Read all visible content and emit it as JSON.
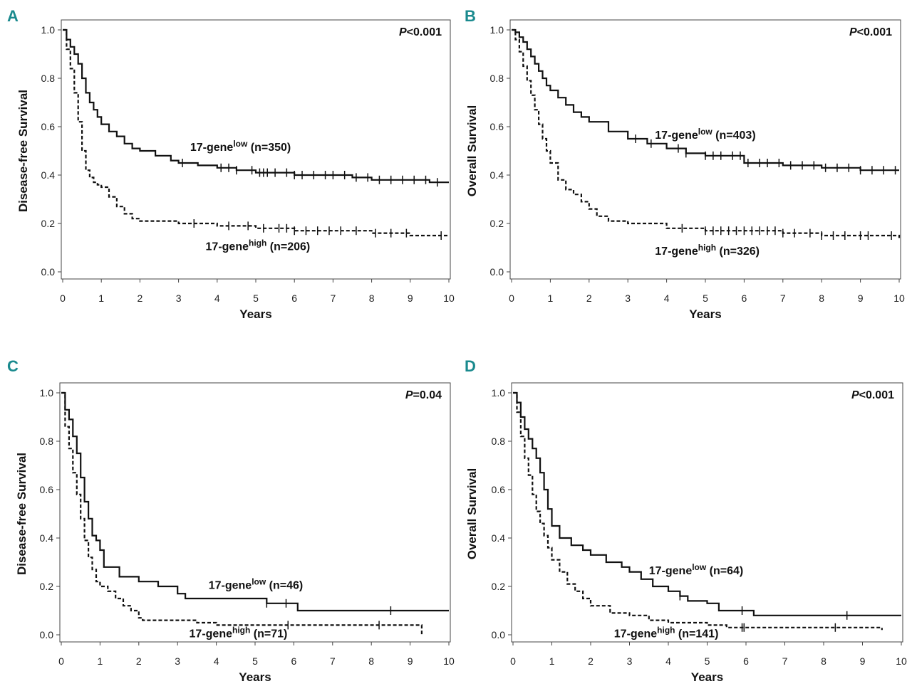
{
  "chart_data": [
    {
      "type": "line",
      "panel": "A",
      "xlabel": "Years",
      "ylabel": "Disease-free Survival",
      "xlim": [
        0,
        10
      ],
      "ylim": [
        0,
        1
      ],
      "xticks": [
        "0",
        "1",
        "2",
        "3",
        "4",
        "5",
        "6",
        "7",
        "8",
        "9",
        "10"
      ],
      "yticks": [
        "0.0",
        "0.2",
        "0.4",
        "0.6",
        "0.8",
        "1.0"
      ],
      "pvalue": {
        "label": "P",
        "rest": "<0.001"
      },
      "series": [
        {
          "name": "17-gene low",
          "base": "17-gene",
          "sup": "low",
          "n": "(n=350)",
          "style": "solid",
          "x": [
            0,
            0.1,
            0.2,
            0.3,
            0.4,
            0.5,
            0.6,
            0.7,
            0.8,
            0.9,
            1.0,
            1.2,
            1.4,
            1.6,
            1.8,
            2.0,
            2.4,
            2.8,
            3.0,
            3.5,
            4.0,
            4.5,
            5.0,
            6.0,
            7.0,
            7.5,
            8.0,
            9.0,
            9.5,
            10.0
          ],
          "y": [
            1.0,
            0.96,
            0.93,
            0.9,
            0.86,
            0.8,
            0.74,
            0.7,
            0.67,
            0.64,
            0.61,
            0.58,
            0.56,
            0.53,
            0.51,
            0.5,
            0.48,
            0.46,
            0.45,
            0.44,
            0.43,
            0.42,
            0.41,
            0.4,
            0.4,
            0.39,
            0.38,
            0.38,
            0.37,
            0.37
          ],
          "censor": [
            3.1,
            4.1,
            4.3,
            4.5,
            4.9,
            5.1,
            5.2,
            5.3,
            5.5,
            5.8,
            6.0,
            6.2,
            6.5,
            6.8,
            7.0,
            7.3,
            7.6,
            7.9,
            8.2,
            8.5,
            8.8,
            9.1,
            9.4,
            9.7
          ]
        },
        {
          "name": "17-gene high",
          "base": "17-gene",
          "sup": "high",
          "n": "(n=206)",
          "style": "dashed",
          "x": [
            0,
            0.1,
            0.2,
            0.3,
            0.4,
            0.5,
            0.6,
            0.7,
            0.8,
            0.9,
            1.0,
            1.2,
            1.4,
            1.6,
            1.8,
            2.0,
            2.5,
            3.0,
            4.0,
            5.0,
            6.0,
            7.0,
            8.0,
            9.0,
            10.0
          ],
          "y": [
            1.0,
            0.92,
            0.84,
            0.74,
            0.62,
            0.5,
            0.42,
            0.39,
            0.37,
            0.36,
            0.35,
            0.31,
            0.27,
            0.24,
            0.22,
            0.21,
            0.21,
            0.2,
            0.19,
            0.18,
            0.17,
            0.17,
            0.16,
            0.15,
            0.15
          ],
          "censor": [
            3.4,
            4.3,
            4.8,
            5.2,
            5.6,
            5.8,
            6.0,
            6.3,
            6.6,
            6.9,
            7.2,
            7.6,
            8.1,
            8.5,
            8.9,
            9.8
          ]
        }
      ],
      "labels": [
        {
          "series": 0,
          "x": 3.3,
          "y": 0.5
        },
        {
          "series": 1,
          "x": 3.7,
          "y": 0.09
        }
      ]
    },
    {
      "type": "line",
      "panel": "B",
      "xlabel": "Years",
      "ylabel": "Overall Survival",
      "xlim": [
        0,
        10
      ],
      "ylim": [
        0,
        1
      ],
      "xticks": [
        "0",
        "1",
        "2",
        "3",
        "4",
        "5",
        "6",
        "7",
        "8",
        "9",
        "10"
      ],
      "yticks": [
        "0.0",
        "0.2",
        "0.4",
        "0.6",
        "0.8",
        "1.0"
      ],
      "pvalue": {
        "label": "P",
        "rest": "<0.001"
      },
      "series": [
        {
          "name": "17-gene low",
          "base": "17-gene",
          "sup": "low",
          "n": "(n=403)",
          "style": "solid",
          "x": [
            0,
            0.1,
            0.2,
            0.3,
            0.4,
            0.5,
            0.6,
            0.7,
            0.8,
            0.9,
            1.0,
            1.2,
            1.4,
            1.6,
            1.8,
            2.0,
            2.5,
            3.0,
            3.5,
            4.0,
            4.5,
            5.0,
            6.0,
            7.0,
            8.0,
            9.0,
            10.0
          ],
          "y": [
            1.0,
            0.99,
            0.97,
            0.95,
            0.92,
            0.89,
            0.86,
            0.83,
            0.8,
            0.77,
            0.75,
            0.72,
            0.69,
            0.66,
            0.64,
            0.62,
            0.58,
            0.55,
            0.53,
            0.51,
            0.49,
            0.48,
            0.45,
            0.44,
            0.43,
            0.42,
            0.42
          ],
          "censor": [
            3.2,
            3.6,
            4.3,
            4.5,
            5.0,
            5.2,
            5.4,
            5.7,
            5.9,
            6.1,
            6.4,
            6.6,
            6.9,
            7.2,
            7.5,
            7.8,
            8.1,
            8.4,
            8.7,
            9.0,
            9.3,
            9.6,
            9.9
          ]
        },
        {
          "name": "17-gene high",
          "base": "17-gene",
          "sup": "high",
          "n": "(n=326)",
          "style": "dashed",
          "x": [
            0,
            0.1,
            0.2,
            0.3,
            0.4,
            0.5,
            0.6,
            0.7,
            0.8,
            0.9,
            1.0,
            1.2,
            1.4,
            1.6,
            1.8,
            2.0,
            2.2,
            2.5,
            3.0,
            4.0,
            5.0,
            6.0,
            7.0,
            8.0,
            9.0,
            10.0
          ],
          "y": [
            1.0,
            0.96,
            0.91,
            0.85,
            0.79,
            0.73,
            0.67,
            0.61,
            0.55,
            0.5,
            0.45,
            0.38,
            0.34,
            0.32,
            0.29,
            0.26,
            0.23,
            0.21,
            0.2,
            0.18,
            0.17,
            0.17,
            0.16,
            0.15,
            0.15,
            0.14
          ],
          "censor": [
            4.4,
            5.0,
            5.2,
            5.4,
            5.6,
            5.8,
            6.0,
            6.2,
            6.4,
            6.6,
            6.8,
            7.0,
            7.3,
            7.7,
            8.0,
            8.3,
            8.6,
            9.0,
            9.2,
            9.8
          ]
        }
      ],
      "labels": [
        {
          "series": 0,
          "x": 3.7,
          "y": 0.55
        },
        {
          "series": 1,
          "x": 3.7,
          "y": 0.07
        }
      ]
    },
    {
      "type": "line",
      "panel": "C",
      "xlabel": "Years",
      "ylabel": "Disease-free Survival",
      "xlim": [
        0,
        10
      ],
      "ylim": [
        0,
        1
      ],
      "xticks": [
        "0",
        "1",
        "2",
        "3",
        "4",
        "5",
        "6",
        "7",
        "8",
        "9",
        "10"
      ],
      "yticks": [
        "0.0",
        "0.2",
        "0.4",
        "0.6",
        "0.8",
        "1.0"
      ],
      "pvalue": {
        "label": "P",
        "rest": "=0.04"
      },
      "series": [
        {
          "name": "17-gene low",
          "base": "17-gene",
          "sup": "low",
          "n": "(n=46)",
          "style": "solid",
          "x": [
            0,
            0.1,
            0.2,
            0.3,
            0.4,
            0.5,
            0.6,
            0.7,
            0.8,
            0.9,
            1.0,
            1.1,
            1.5,
            2.0,
            2.5,
            3.0,
            3.2,
            5.0,
            5.3,
            6.0,
            6.1,
            9.0,
            10.0
          ],
          "y": [
            1.0,
            0.93,
            0.89,
            0.82,
            0.75,
            0.65,
            0.55,
            0.48,
            0.41,
            0.39,
            0.35,
            0.28,
            0.24,
            0.22,
            0.2,
            0.17,
            0.15,
            0.15,
            0.13,
            0.13,
            0.1,
            0.1,
            0.1
          ],
          "censor": [
            5.3,
            5.8,
            8.5
          ]
        },
        {
          "name": "17-gene high",
          "base": "17-gene",
          "sup": "high",
          "n": "(n=71)",
          "style": "dashed",
          "x": [
            0,
            0.1,
            0.2,
            0.3,
            0.4,
            0.5,
            0.6,
            0.7,
            0.8,
            0.9,
            1.0,
            1.2,
            1.4,
            1.6,
            1.8,
            2.0,
            2.1,
            3.5,
            4.0,
            5.0,
            6.0,
            7.0,
            8.0,
            9.0,
            9.3
          ],
          "y": [
            1.0,
            0.86,
            0.77,
            0.67,
            0.58,
            0.48,
            0.39,
            0.32,
            0.27,
            0.22,
            0.2,
            0.18,
            0.15,
            0.12,
            0.1,
            0.07,
            0.06,
            0.05,
            0.04,
            0.04,
            0.04,
            0.04,
            0.04,
            0.04,
            0.0
          ],
          "censor": [
            5.85,
            8.2
          ]
        }
      ],
      "labels": [
        {
          "series": 0,
          "x": 3.8,
          "y": 0.19
        },
        {
          "series": 1,
          "x": 3.3,
          "y": -0.01
        }
      ]
    },
    {
      "type": "line",
      "panel": "D",
      "xlabel": "Years",
      "ylabel": "Overall Survival",
      "xlim": [
        0,
        10
      ],
      "ylim": [
        0,
        1
      ],
      "xticks": [
        "0",
        "1",
        "2",
        "3",
        "4",
        "5",
        "6",
        "7",
        "8",
        "9",
        "10"
      ],
      "yticks": [
        "0.0",
        "0.2",
        "0.4",
        "0.6",
        "0.8",
        "1.0"
      ],
      "pvalue": {
        "label": "P",
        "rest": "<0.001"
      },
      "series": [
        {
          "name": "17-gene low",
          "base": "17-gene",
          "sup": "low",
          "n": "(n=64)",
          "style": "solid",
          "x": [
            0,
            0.1,
            0.2,
            0.3,
            0.4,
            0.5,
            0.6,
            0.7,
            0.8,
            0.9,
            1.0,
            1.2,
            1.5,
            1.8,
            2.0,
            2.4,
            2.8,
            3.0,
            3.3,
            3.6,
            4.0,
            4.3,
            4.5,
            5.0,
            5.3,
            6.0,
            6.2,
            7.0,
            8.0,
            9.0,
            10.0
          ],
          "y": [
            1.0,
            0.96,
            0.9,
            0.85,
            0.81,
            0.77,
            0.73,
            0.67,
            0.6,
            0.52,
            0.45,
            0.4,
            0.37,
            0.35,
            0.33,
            0.3,
            0.28,
            0.26,
            0.23,
            0.2,
            0.18,
            0.16,
            0.14,
            0.13,
            0.1,
            0.1,
            0.08,
            0.08,
            0.08,
            0.08,
            0.08
          ],
          "censor": [
            4.3,
            5.9,
            8.6
          ]
        },
        {
          "name": "17-gene high",
          "base": "17-gene",
          "sup": "high",
          "n": "(n=141)",
          "style": "dashed",
          "x": [
            0,
            0.1,
            0.2,
            0.3,
            0.4,
            0.5,
            0.6,
            0.7,
            0.8,
            0.9,
            1.0,
            1.2,
            1.4,
            1.6,
            1.8,
            2.0,
            2.5,
            3.0,
            3.5,
            4.0,
            5.0,
            5.5,
            6.0,
            7.0,
            8.0,
            9.0,
            9.5
          ],
          "y": [
            1.0,
            0.92,
            0.82,
            0.73,
            0.66,
            0.58,
            0.51,
            0.46,
            0.41,
            0.36,
            0.31,
            0.26,
            0.21,
            0.18,
            0.15,
            0.12,
            0.09,
            0.08,
            0.06,
            0.05,
            0.04,
            0.03,
            0.03,
            0.03,
            0.03,
            0.03,
            0.02
          ],
          "censor": [
            5.9,
            5.95,
            8.3
          ]
        }
      ],
      "labels": [
        {
          "series": 0,
          "x": 3.5,
          "y": 0.25
        },
        {
          "series": 1,
          "x": 2.6,
          "y": -0.01
        }
      ]
    }
  ]
}
